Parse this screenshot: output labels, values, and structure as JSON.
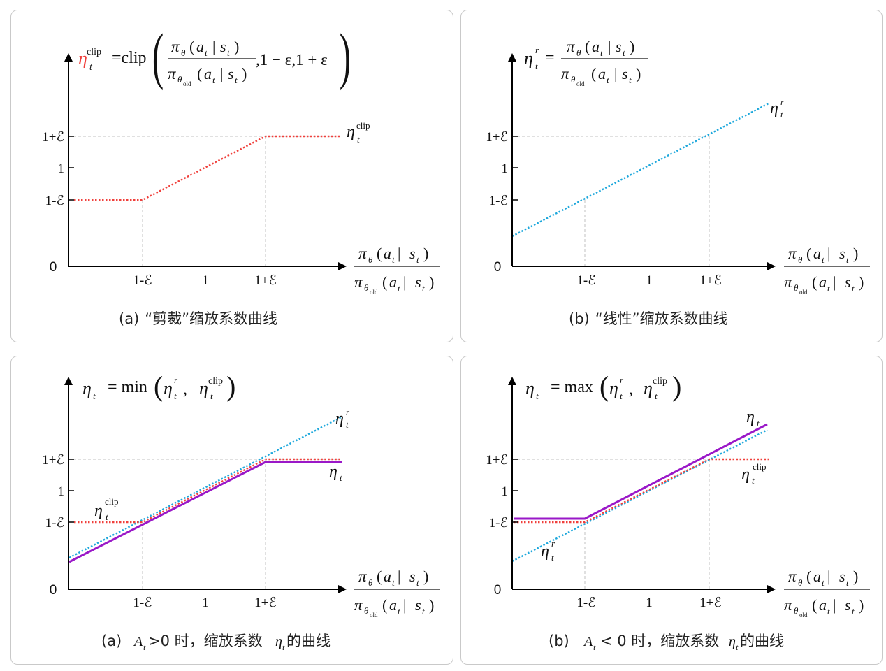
{
  "colors": {
    "clip": "#f0403c",
    "linear": "#1ea8dc",
    "result": "#9a18c8",
    "axis": "#000000",
    "guide": "#c0c0c0",
    "border": "#c9c9c9"
  },
  "glyphs": {
    "eta": "η",
    "pi": "π",
    "theta": "θ",
    "epsilon": "ε",
    "t": "t",
    "r": "r",
    "clip_sup": "clip",
    "old": "old",
    "a": "a",
    "s": "s",
    "bar": "|",
    "A": "A"
  },
  "formulas": {
    "clip_fn": "=clip",
    "clip_args": ",1 − ε,1 + ε",
    "eq": "=",
    "min_fn": "= min",
    "max_fn": "= max",
    "comma": ","
  },
  "axis": {
    "x_ticks": [
      "1-ℰ",
      "1",
      "1+ℰ"
    ],
    "y_ticks": [
      "1+ℰ",
      "1",
      "1-ℰ"
    ],
    "origin": "0"
  },
  "panels": [
    {
      "caption_prefix": "(a)",
      "caption": "“剪裁”缩放系数曲线"
    },
    {
      "caption_prefix": "(b)",
      "caption": "“线性”缩放系数曲线"
    },
    {
      "caption_prefix": "(a)",
      "caption_mid": ">0 时，缩放系数",
      "caption_end": "的曲线"
    },
    {
      "caption_prefix": "(b)",
      "caption_mid": "< 0 时，缩放系数",
      "caption_end": "的曲线"
    }
  ]
}
